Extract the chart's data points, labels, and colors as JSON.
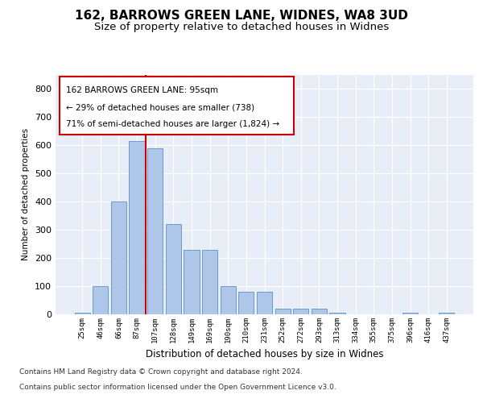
{
  "title": "162, BARROWS GREEN LANE, WIDNES, WA8 3UD",
  "subtitle": "Size of property relative to detached houses in Widnes",
  "xlabel": "Distribution of detached houses by size in Widnes",
  "ylabel": "Number of detached properties",
  "footer_line1": "Contains HM Land Registry data © Crown copyright and database right 2024.",
  "footer_line2": "Contains public sector information licensed under the Open Government Licence v3.0.",
  "annotation_line1": "162 BARROWS GREEN LANE: 95sqm",
  "annotation_line2": "← 29% of detached houses are smaller (738)",
  "annotation_line3": "71% of semi-detached houses are larger (1,824) →",
  "bar_color": "#aec6e8",
  "bar_edge_color": "#5b8fc9",
  "vline_color": "#cc0000",
  "vline_x": 3.5,
  "categories": [
    "25sqm",
    "46sqm",
    "66sqm",
    "87sqm",
    "107sqm",
    "128sqm",
    "149sqm",
    "169sqm",
    "190sqm",
    "210sqm",
    "231sqm",
    "252sqm",
    "272sqm",
    "293sqm",
    "313sqm",
    "334sqm",
    "355sqm",
    "375sqm",
    "396sqm",
    "416sqm",
    "437sqm"
  ],
  "values": [
    5,
    100,
    400,
    615,
    590,
    320,
    230,
    230,
    100,
    80,
    80,
    20,
    20,
    20,
    5,
    0,
    0,
    0,
    5,
    0,
    5
  ],
  "ylim": [
    0,
    850
  ],
  "yticks": [
    0,
    100,
    200,
    300,
    400,
    500,
    600,
    700,
    800
  ],
  "plot_background": "#e8eef7",
  "grid_color": "#ffffff",
  "title_fontsize": 11,
  "subtitle_fontsize": 9.5
}
